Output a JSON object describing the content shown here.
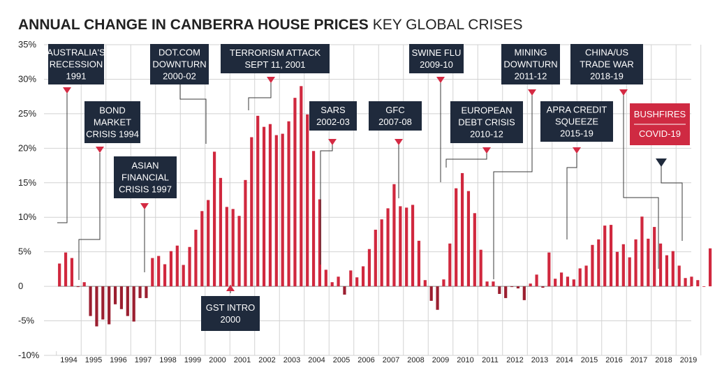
{
  "chart_data": {
    "type": "bar",
    "title": "ANNUAL CHANGE IN CANBERRA HOUSE PRICES",
    "subtitle": "KEY GLOBAL CRISES",
    "ylim": [
      -10,
      35
    ],
    "ytick_labels": [
      "35%",
      "30%",
      "25%",
      "20%",
      "15%",
      "10%",
      "5%",
      "0",
      "-5%",
      "-10%"
    ],
    "yticks": [
      35,
      30,
      25,
      20,
      15,
      10,
      5,
      0,
      -5,
      -10
    ],
    "x_labels": [
      "1994",
      "1995",
      "1996",
      "1997",
      "1998",
      "1999",
      "2000",
      "2001",
      "2002",
      "2003",
      "2004",
      "2005",
      "2006",
      "2007",
      "2008",
      "2009",
      "2010",
      "2011",
      "2012",
      "2013",
      "2014",
      "2015",
      "2016",
      "2017",
      "2018",
      "2019"
    ],
    "x_start": 1993.625,
    "quarters_per_year": 4,
    "values": [
      3.3,
      4.9,
      4.1,
      -0.1,
      0.6,
      -4.3,
      -5.8,
      -4.8,
      -5.5,
      -2.6,
      -3.3,
      -4.3,
      -5.1,
      -1.7,
      -1.7,
      4.1,
      4.4,
      3.2,
      5.1,
      5.9,
      3.1,
      5.7,
      8.2,
      10.9,
      12.5,
      19.5,
      15.7,
      11.5,
      11.2,
      10.2,
      15.4,
      21.6,
      24.7,
      23.1,
      23.5,
      21.9,
      22.1,
      23.9,
      27.3,
      29,
      24.9,
      19.6,
      12.6,
      2.4,
      0.6,
      1.4,
      -1.2,
      2.3,
      1.3,
      2.9,
      5.4,
      8.2,
      9.7,
      11.3,
      14.8,
      11.6,
      11.4,
      11.8,
      6.6,
      0.9,
      -2.1,
      -3.4,
      1,
      6.2,
      14.2,
      16.4,
      13.8,
      10.6,
      5.3,
      0.7,
      0.7,
      -1.1,
      -1.7,
      -0.1,
      -0.3,
      -2,
      0.4,
      1.7,
      -0.2,
      4.9,
      1.1,
      2,
      1.4,
      1,
      2.6,
      3,
      6,
      6.8,
      8.8,
      8.9,
      5,
      6.1,
      4.2,
      6.8,
      10.1,
      6.9,
      8.6,
      6.2,
      4.5,
      5.1,
      3,
      1.2,
      1.4,
      0.9,
      0,
      5.5
    ],
    "annotations": [
      {
        "lines": [
          "AUSTRALIA'S",
          "RECESSION",
          "1991"
        ],
        "style": "dark"
      },
      {
        "lines": [
          "BOND",
          "MARKET",
          "CRISIS 1994"
        ],
        "style": "dark"
      },
      {
        "lines": [
          "ASIAN",
          "FINANCIAL",
          "CRISIS 1997"
        ],
        "style": "dark"
      },
      {
        "lines": [
          "DOT.COM",
          "DOWNTURN",
          "2000-02"
        ],
        "style": "dark"
      },
      {
        "lines": [
          "GST INTRO",
          "2000"
        ],
        "style": "dark"
      },
      {
        "lines": [
          "TERRORISM ATTACK",
          "SEPT 11, 2001"
        ],
        "style": "dark"
      },
      {
        "lines": [
          "SARS",
          "2002-03"
        ],
        "style": "dark"
      },
      {
        "lines": [
          "GFC",
          "2007-08"
        ],
        "style": "dark"
      },
      {
        "lines": [
          "SWINE FLU",
          "2009-10"
        ],
        "style": "dark"
      },
      {
        "lines": [
          "EUROPEAN",
          "DEBT CRISIS",
          "2010-12"
        ],
        "style": "dark"
      },
      {
        "lines": [
          "MINING",
          "DOWNTURN",
          "2011-12"
        ],
        "style": "dark"
      },
      {
        "lines": [
          "APRA CREDIT",
          "SQUEEZE",
          "2015-19"
        ],
        "style": "dark"
      },
      {
        "lines": [
          "CHINA/US",
          "TRADE WAR",
          "2018-19"
        ],
        "style": "dark"
      },
      {
        "lines": [
          "BUSHFIRES",
          "COVID-19"
        ],
        "style": "red"
      }
    ]
  },
  "colors": {
    "bar_positive": "#d0283e",
    "bar_negative": "#9b1f30",
    "callout_dark": "#1f2a3c",
    "callout_red": "#cf2a42",
    "marker_red": "#d42a43",
    "marker_dark": "#1f2a3c",
    "grid": "#d2d2d2",
    "text": "#222222"
  }
}
